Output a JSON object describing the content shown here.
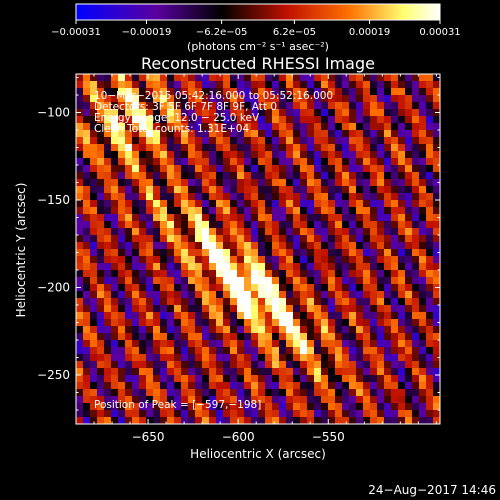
{
  "chart_data": {
    "type": "heatmap",
    "title": "Reconstructed RHESSI Image",
    "xlabel": "Heliocentric X (arcsec)",
    "ylabel": "Heliocentric Y (arcsec)",
    "xlim": [
      -690,
      -488
    ],
    "ylim": [
      -278,
      -78
    ],
    "xticks": [
      -650,
      -600,
      -550
    ],
    "yticks": [
      -100,
      -150,
      -200,
      -250
    ],
    "xtick_labels": [
      "−650",
      "−600",
      "−550"
    ],
    "ytick_labels": [
      "−100",
      "−150",
      "−200",
      "−250"
    ],
    "colorbar": {
      "min": -0.00031,
      "max": 0.00031,
      "tick_values": [
        -0.00031,
        -0.00019,
        -6.2e-05,
        6.2e-05,
        0.00019,
        0.00031
      ],
      "tick_labels": [
        "−0.00031",
        "−0.00019",
        "−6.2e−05",
        "6.2e−05",
        "0.00019",
        "0.00031"
      ],
      "unit_label": "(photons cm⁻² s⁻¹ asec⁻²)",
      "colormap_stops": [
        "#0000ff",
        "#5a00a0",
        "#000000",
        "#c01000",
        "#ff7000",
        "#ffff70",
        "#ffffff"
      ]
    },
    "annotations": [
      "10−Mar−2015 05:42:16.000 to 05:52:16.000",
      "Detectors: 3F 5F 6F 7F 8F 9F, Att 0",
      "Energy Range: 12.0 − 25.0 keV",
      "Clean     Total counts: 1.31E+04"
    ],
    "peak_label": "Position of Peak = [−597,−198]",
    "peak": [
      -597,
      -198
    ],
    "timestamp": "24−Aug−2017 14:46"
  }
}
